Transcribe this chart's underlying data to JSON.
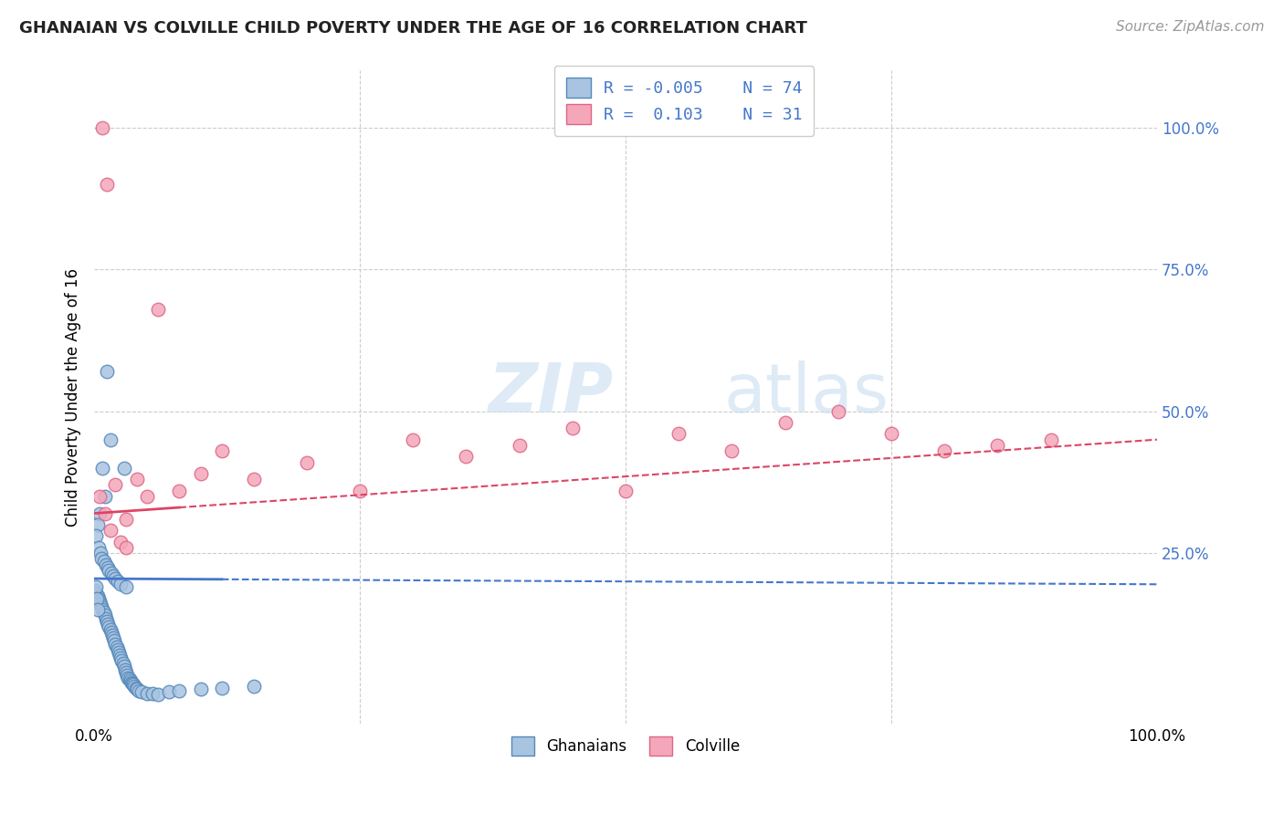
{
  "title": "GHANAIAN VS COLVILLE CHILD POVERTY UNDER THE AGE OF 16 CORRELATION CHART",
  "source": "Source: ZipAtlas.com",
  "ylabel": "Child Poverty Under the Age of 16",
  "xlim": [
    0,
    100
  ],
  "ylim": [
    -5,
    110
  ],
  "ghanaian_color": "#a8c4e0",
  "colville_color": "#f4a7b9",
  "ghanaian_edge": "#5588bb",
  "colville_edge": "#dd6688",
  "trend_blue": "#4477cc",
  "trend_pink": "#dd4466",
  "blue_y0": 20.5,
  "blue_y1": 19.5,
  "pink_y0": 32.0,
  "pink_y1": 45.0,
  "blue_split": 12,
  "pink_split": 8,
  "ghanaians_x": [
    1.2,
    1.5,
    0.8,
    1.0,
    0.5,
    0.3,
    0.2,
    0.4,
    0.6,
    0.7,
    0.9,
    1.1,
    1.3,
    1.4,
    1.6,
    1.8,
    2.0,
    2.2,
    2.5,
    3.0,
    0.1,
    0.2,
    0.3,
    0.4,
    0.5,
    0.6,
    0.7,
    0.8,
    0.9,
    1.0,
    1.1,
    1.2,
    1.3,
    1.4,
    1.5,
    1.6,
    1.7,
    1.8,
    1.9,
    2.0,
    2.1,
    2.2,
    2.3,
    2.4,
    2.5,
    2.6,
    2.7,
    2.8,
    2.9,
    3.0,
    3.1,
    3.2,
    3.3,
    3.4,
    3.5,
    3.6,
    3.7,
    3.8,
    3.9,
    4.0,
    4.2,
    4.5,
    5.0,
    5.5,
    6.0,
    7.0,
    8.0,
    10.0,
    12.0,
    15.0,
    0.15,
    0.25,
    0.35,
    2.8
  ],
  "ghanaians_y": [
    57.0,
    45.0,
    40.0,
    35.0,
    32.0,
    30.0,
    28.0,
    26.0,
    25.0,
    24.0,
    23.5,
    23.0,
    22.5,
    22.0,
    21.5,
    21.0,
    20.5,
    20.0,
    19.5,
    19.0,
    18.5,
    18.0,
    17.5,
    17.0,
    16.5,
    16.0,
    15.5,
    15.0,
    14.5,
    14.0,
    13.5,
    13.0,
    12.5,
    12.0,
    11.5,
    11.0,
    10.5,
    10.0,
    9.5,
    9.0,
    8.5,
    8.0,
    7.5,
    7.0,
    6.5,
    6.0,
    5.5,
    5.0,
    4.5,
    4.0,
    3.5,
    3.0,
    2.8,
    2.5,
    2.2,
    2.0,
    1.8,
    1.5,
    1.2,
    1.0,
    0.8,
    0.5,
    0.3,
    0.2,
    0.1,
    0.5,
    0.8,
    1.0,
    1.2,
    1.5,
    19.0,
    17.0,
    15.0,
    40.0
  ],
  "colville_x": [
    0.5,
    1.0,
    1.5,
    2.0,
    2.5,
    3.0,
    4.0,
    5.0,
    6.0,
    8.0,
    10.0,
    12.0,
    15.0,
    20.0,
    25.0,
    30.0,
    35.0,
    40.0,
    45.0,
    50.0,
    55.0,
    60.0,
    65.0,
    70.0,
    75.0,
    80.0,
    85.0,
    90.0,
    3.0,
    1.2,
    0.8
  ],
  "colville_y": [
    35.0,
    32.0,
    29.0,
    37.0,
    27.0,
    31.0,
    38.0,
    35.0,
    68.0,
    36.0,
    39.0,
    43.0,
    38.0,
    41.0,
    36.0,
    45.0,
    42.0,
    44.0,
    47.0,
    36.0,
    46.0,
    43.0,
    48.0,
    50.0,
    46.0,
    43.0,
    44.0,
    45.0,
    26.0,
    90.0,
    100.0
  ]
}
